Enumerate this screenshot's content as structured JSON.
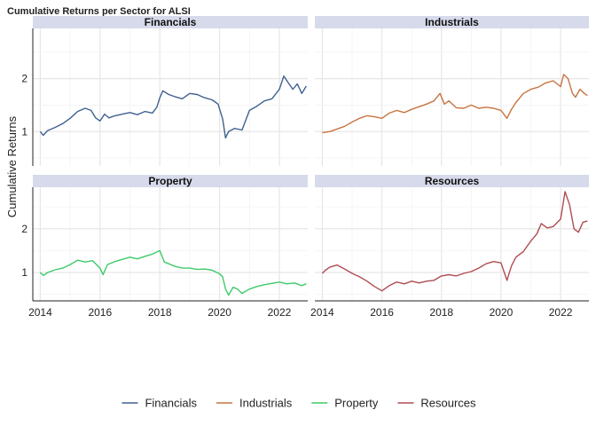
{
  "chart_data": {
    "type": "line",
    "title": "Cumulative Returns per Sector for ALSI",
    "ylabel": "Cumulative Returns",
    "xlabel": "",
    "xlim": [
      2013.75,
      2022.95
    ],
    "ylim": [
      0.35,
      2.95
    ],
    "x_ticks": [
      "2014",
      "2016",
      "2018",
      "2020",
      "2022"
    ],
    "x_tick_values": [
      2014,
      2016,
      2018,
      2020,
      2022
    ],
    "y_ticks": [
      "1",
      "2"
    ],
    "y_tick_values": [
      1,
      2
    ],
    "grid": true,
    "legend_position": "bottom",
    "facet_layout": "2x2",
    "panels": [
      "Financials",
      "Industrials",
      "Property",
      "Resources"
    ],
    "series": [
      {
        "name": "Financials",
        "color": "#3F6190",
        "points": [
          [
            2014.0,
            1.0
          ],
          [
            2014.1,
            0.93
          ],
          [
            2014.25,
            1.02
          ],
          [
            2014.5,
            1.08
          ],
          [
            2014.75,
            1.15
          ],
          [
            2015.0,
            1.25
          ],
          [
            2015.25,
            1.38
          ],
          [
            2015.5,
            1.44
          ],
          [
            2015.7,
            1.4
          ],
          [
            2015.85,
            1.26
          ],
          [
            2016.0,
            1.2
          ],
          [
            2016.15,
            1.33
          ],
          [
            2016.3,
            1.26
          ],
          [
            2016.5,
            1.3
          ],
          [
            2016.75,
            1.33
          ],
          [
            2017.0,
            1.36
          ],
          [
            2017.25,
            1.32
          ],
          [
            2017.5,
            1.38
          ],
          [
            2017.75,
            1.35
          ],
          [
            2017.9,
            1.46
          ],
          [
            2018.0,
            1.64
          ],
          [
            2018.1,
            1.77
          ],
          [
            2018.3,
            1.7
          ],
          [
            2018.5,
            1.66
          ],
          [
            2018.75,
            1.62
          ],
          [
            2019.0,
            1.72
          ],
          [
            2019.25,
            1.7
          ],
          [
            2019.5,
            1.64
          ],
          [
            2019.75,
            1.6
          ],
          [
            2019.95,
            1.52
          ],
          [
            2020.1,
            1.24
          ],
          [
            2020.2,
            0.88
          ],
          [
            2020.3,
            1.0
          ],
          [
            2020.5,
            1.06
          ],
          [
            2020.75,
            1.03
          ],
          [
            2020.9,
            1.25
          ],
          [
            2021.0,
            1.4
          ],
          [
            2021.25,
            1.48
          ],
          [
            2021.5,
            1.58
          ],
          [
            2021.75,
            1.62
          ],
          [
            2022.0,
            1.8
          ],
          [
            2022.15,
            2.05
          ],
          [
            2022.3,
            1.92
          ],
          [
            2022.45,
            1.8
          ],
          [
            2022.6,
            1.9
          ],
          [
            2022.75,
            1.72
          ],
          [
            2022.9,
            1.86
          ]
        ]
      },
      {
        "name": "Industrials",
        "color": "#C87441",
        "points": [
          [
            2014.0,
            0.98
          ],
          [
            2014.25,
            1.0
          ],
          [
            2014.5,
            1.05
          ],
          [
            2014.75,
            1.1
          ],
          [
            2015.0,
            1.18
          ],
          [
            2015.25,
            1.25
          ],
          [
            2015.5,
            1.3
          ],
          [
            2015.75,
            1.28
          ],
          [
            2016.0,
            1.25
          ],
          [
            2016.25,
            1.35
          ],
          [
            2016.5,
            1.4
          ],
          [
            2016.75,
            1.36
          ],
          [
            2017.0,
            1.42
          ],
          [
            2017.25,
            1.47
          ],
          [
            2017.5,
            1.52
          ],
          [
            2017.75,
            1.58
          ],
          [
            2017.95,
            1.72
          ],
          [
            2018.1,
            1.52
          ],
          [
            2018.25,
            1.58
          ],
          [
            2018.5,
            1.45
          ],
          [
            2018.75,
            1.44
          ],
          [
            2019.0,
            1.5
          ],
          [
            2019.25,
            1.44
          ],
          [
            2019.5,
            1.46
          ],
          [
            2019.75,
            1.44
          ],
          [
            2020.0,
            1.4
          ],
          [
            2020.2,
            1.25
          ],
          [
            2020.35,
            1.42
          ],
          [
            2020.5,
            1.55
          ],
          [
            2020.75,
            1.72
          ],
          [
            2021.0,
            1.8
          ],
          [
            2021.25,
            1.84
          ],
          [
            2021.5,
            1.92
          ],
          [
            2021.75,
            1.96
          ],
          [
            2022.0,
            1.85
          ],
          [
            2022.1,
            2.08
          ],
          [
            2022.25,
            2.0
          ],
          [
            2022.4,
            1.72
          ],
          [
            2022.5,
            1.65
          ],
          [
            2022.65,
            1.8
          ],
          [
            2022.8,
            1.72
          ],
          [
            2022.9,
            1.68
          ]
        ]
      },
      {
        "name": "Property",
        "color": "#3ECA6A",
        "points": [
          [
            2014.0,
            1.0
          ],
          [
            2014.1,
            0.93
          ],
          [
            2014.25,
            1.0
          ],
          [
            2014.5,
            1.06
          ],
          [
            2014.75,
            1.1
          ],
          [
            2015.0,
            1.18
          ],
          [
            2015.25,
            1.28
          ],
          [
            2015.5,
            1.24
          ],
          [
            2015.75,
            1.27
          ],
          [
            2016.0,
            1.1
          ],
          [
            2016.1,
            0.95
          ],
          [
            2016.25,
            1.18
          ],
          [
            2016.5,
            1.25
          ],
          [
            2016.75,
            1.3
          ],
          [
            2017.0,
            1.35
          ],
          [
            2017.25,
            1.31
          ],
          [
            2017.5,
            1.37
          ],
          [
            2017.75,
            1.42
          ],
          [
            2018.0,
            1.5
          ],
          [
            2018.15,
            1.24
          ],
          [
            2018.3,
            1.2
          ],
          [
            2018.5,
            1.14
          ],
          [
            2018.75,
            1.1
          ],
          [
            2019.0,
            1.1
          ],
          [
            2019.25,
            1.07
          ],
          [
            2019.5,
            1.08
          ],
          [
            2019.75,
            1.05
          ],
          [
            2020.0,
            0.97
          ],
          [
            2020.1,
            0.9
          ],
          [
            2020.2,
            0.62
          ],
          [
            2020.3,
            0.48
          ],
          [
            2020.45,
            0.66
          ],
          [
            2020.6,
            0.62
          ],
          [
            2020.75,
            0.52
          ],
          [
            2021.0,
            0.62
          ],
          [
            2021.25,
            0.68
          ],
          [
            2021.5,
            0.72
          ],
          [
            2021.75,
            0.75
          ],
          [
            2022.0,
            0.78
          ],
          [
            2022.25,
            0.74
          ],
          [
            2022.5,
            0.76
          ],
          [
            2022.75,
            0.7
          ],
          [
            2022.9,
            0.74
          ]
        ]
      },
      {
        "name": "Resources",
        "color": "#B04C52",
        "points": [
          [
            2014.0,
            0.98
          ],
          [
            2014.1,
            1.05
          ],
          [
            2014.25,
            1.12
          ],
          [
            2014.5,
            1.17
          ],
          [
            2014.75,
            1.08
          ],
          [
            2015.0,
            0.98
          ],
          [
            2015.25,
            0.9
          ],
          [
            2015.5,
            0.8
          ],
          [
            2015.75,
            0.68
          ],
          [
            2016.0,
            0.58
          ],
          [
            2016.25,
            0.7
          ],
          [
            2016.5,
            0.78
          ],
          [
            2016.75,
            0.74
          ],
          [
            2017.0,
            0.8
          ],
          [
            2017.25,
            0.76
          ],
          [
            2017.5,
            0.8
          ],
          [
            2017.75,
            0.82
          ],
          [
            2018.0,
            0.92
          ],
          [
            2018.25,
            0.95
          ],
          [
            2018.5,
            0.92
          ],
          [
            2018.75,
            0.98
          ],
          [
            2019.0,
            1.02
          ],
          [
            2019.25,
            1.1
          ],
          [
            2019.5,
            1.2
          ],
          [
            2019.75,
            1.25
          ],
          [
            2020.0,
            1.22
          ],
          [
            2020.2,
            0.82
          ],
          [
            2020.35,
            1.15
          ],
          [
            2020.5,
            1.35
          ],
          [
            2020.75,
            1.48
          ],
          [
            2021.0,
            1.72
          ],
          [
            2021.2,
            1.88
          ],
          [
            2021.35,
            2.12
          ],
          [
            2021.55,
            2.02
          ],
          [
            2021.75,
            2.05
          ],
          [
            2022.0,
            2.22
          ],
          [
            2022.15,
            2.85
          ],
          [
            2022.3,
            2.55
          ],
          [
            2022.45,
            2.0
          ],
          [
            2022.6,
            1.92
          ],
          [
            2022.75,
            2.15
          ],
          [
            2022.9,
            2.18
          ]
        ]
      }
    ]
  }
}
